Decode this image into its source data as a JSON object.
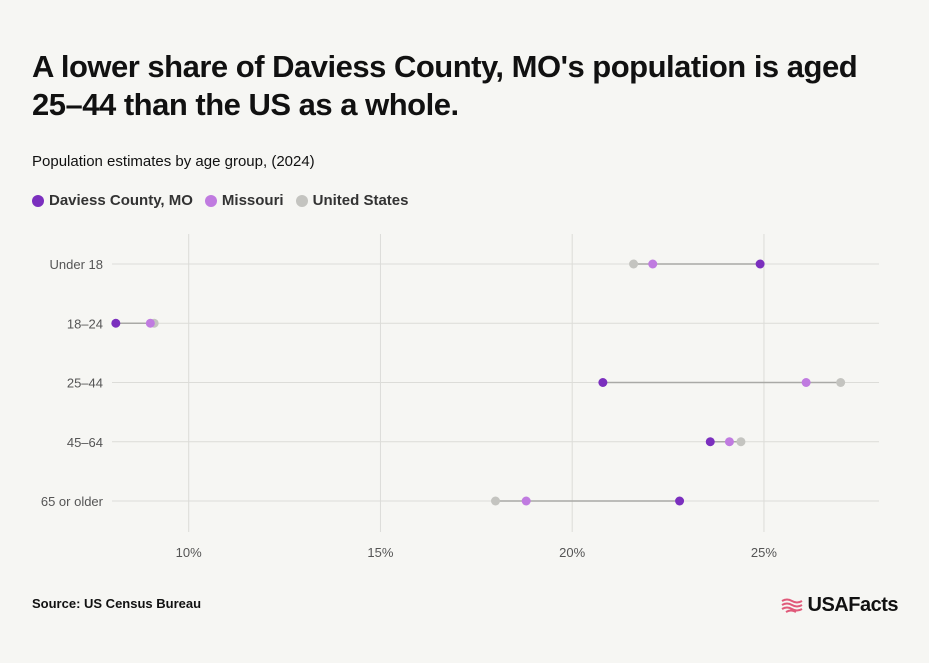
{
  "title": "A lower share of Daviess County, MO's population is aged 25–44 than the US as a whole.",
  "subtitle": "Population estimates by age group, (2024)",
  "source": "Source: US Census Bureau",
  "logo": {
    "text": "USAFacts",
    "icon": "us-flag-icon"
  },
  "legend": [
    {
      "label": "Daviess County, MO",
      "color": "#7b2fbe"
    },
    {
      "label": "Missouri",
      "color": "#c07be0"
    },
    {
      "label": "United States",
      "color": "#c4c4c0"
    }
  ],
  "chart_data": {
    "type": "dumbbell",
    "categories": [
      "Under 18",
      "18–24",
      "25–44",
      "45–64",
      "65 or older"
    ],
    "xlim": [
      8,
      28
    ],
    "xticks": [
      10,
      15,
      20,
      25
    ],
    "xtick_labels": [
      "10%",
      "15%",
      "20%",
      "25%"
    ],
    "grid": true,
    "legend_position": "top-left",
    "series": [
      {
        "name": "Daviess County, MO",
        "color": "#7b2fbe",
        "values": [
          24.9,
          8.1,
          20.8,
          23.6,
          22.8
        ]
      },
      {
        "name": "Missouri",
        "color": "#c07be0",
        "values": [
          22.1,
          9.0,
          26.1,
          24.1,
          18.8
        ]
      },
      {
        "name": "United States",
        "color": "#c4c4c0",
        "values": [
          21.6,
          9.1,
          27.0,
          24.4,
          18.0
        ]
      }
    ]
  }
}
